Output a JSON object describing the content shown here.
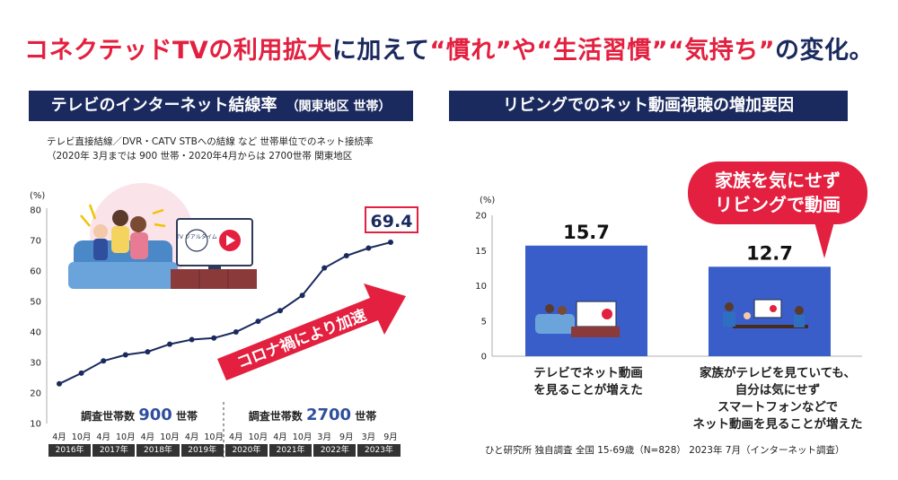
{
  "headline": {
    "part1": "コネクテッドTVの利用拡大",
    "part2": "に加えて",
    "part3": "“慣れ”や“生活習慣”“気持ち”",
    "part4": "の変化。"
  },
  "left_panel": {
    "title": "テレビのインターネット結線率",
    "title_small": "（関東地区 世帯）",
    "note_line1": "テレビ直接結線／DVR・CATV STBへの結線 など 世帯単位でのネット接続率",
    "note_line2": "（2020年 3月までは 900 世帯・2020年4月からは 2700世帯 関東地区",
    "unit": "(%)",
    "latest_value_label": "69.4",
    "arrow_label": "コロナ禍により加速",
    "sample1_prefix": "調査世帯数",
    "sample1_value": "900",
    "sample1_suffix": "世帯",
    "sample2_prefix": "調査世帯数",
    "sample2_value": "2700",
    "sample2_suffix": "世帯",
    "tv_label": "TV リアルタイム"
  },
  "right_panel": {
    "title": "リビングでのネット動画視聴の増加要因",
    "unit": "(%)",
    "bubble_line1": "家族を気にせず",
    "bubble_line2": "リビングで動画",
    "bar1_caption_line1": "テレビでネット動画",
    "bar1_caption_line2": "を見ることが増えた",
    "bar2_caption_line1": "家族がテレビを見ていても、",
    "bar2_caption_line2": "自分は気にせず",
    "bar2_caption_line3": "スマートフォンなどで",
    "bar2_caption_line4": "ネット動画を見ることが増えた",
    "source": "ひと研究所 独自調査 全国 15-69歳（N=828） 2023年 7月（インターネット調査）"
  },
  "colors": {
    "accent_red": "#e3203f",
    "navy": "#1b2a5e",
    "bar_blue": "#3a5ec9",
    "line": "#1b2a5e"
  },
  "chart_data": [
    {
      "type": "line",
      "title": "テレビのインターネット結線率",
      "ylabel": "(%)",
      "ylim": [
        10,
        80
      ],
      "yticks": [
        10,
        20,
        30,
        40,
        50,
        60,
        70,
        80
      ],
      "x": [
        "2016年4月",
        "2016年10月",
        "2017年4月",
        "2017年10月",
        "2018年4月",
        "2018年10月",
        "2019年4月",
        "2019年10月",
        "2020年4月",
        "2020年10月",
        "2021年4月",
        "2021年10月",
        "2022年3月",
        "2022年9月",
        "2023年3月",
        "2023年9月"
      ],
      "x_month_labels": [
        "4月",
        "10月",
        "4月",
        "10月",
        "4月",
        "10月",
        "4月",
        "10月",
        "4月",
        "10月",
        "4月",
        "10月",
        "3月",
        "9月",
        "3月",
        "9月"
      ],
      "x_year_labels": [
        "2016年",
        "2017年",
        "2018年",
        "2019年",
        "2020年",
        "2021年",
        "2022年",
        "2023年"
      ],
      "series": [
        {
          "values": [
            23,
            26.5,
            30.5,
            32.5,
            33.5,
            36,
            37.5,
            38,
            40,
            43.5,
            47,
            52,
            61,
            65,
            67.5,
            69.4
          ]
        }
      ],
      "grid": false
    },
    {
      "type": "bar",
      "title": "リビングでのネット動画視聴の増加要因",
      "ylabel": "(%)",
      "ylim": [
        0,
        20
      ],
      "yticks": [
        0,
        5,
        10,
        15,
        20
      ],
      "categories": [
        "テレビでネット動画を見ることが増えた",
        "家族がテレビを見ていても、自分は気にせずスマートフォンなどでネット動画を見ることが増えた"
      ],
      "values": [
        15.7,
        12.7
      ],
      "value_labels": [
        "15.7",
        "12.7"
      ]
    }
  ]
}
